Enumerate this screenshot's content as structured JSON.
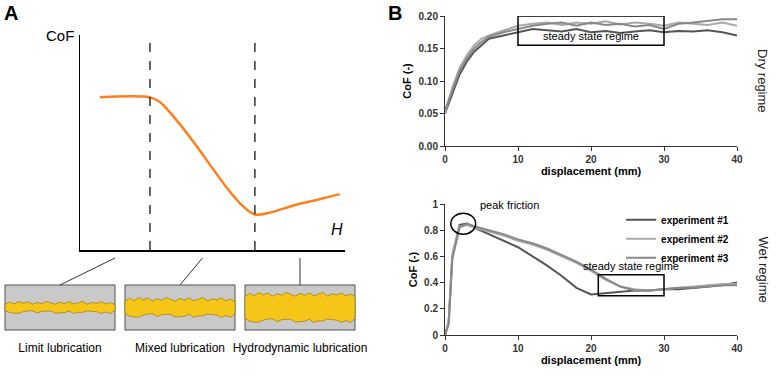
{
  "panel_labels": [
    "A",
    "B"
  ],
  "chart_data": [
    {
      "type": "line",
      "xlabel": "H",
      "ylabel": "CoF",
      "xlim": [
        0,
        10
      ],
      "ylim": [
        0,
        10
      ],
      "tick_labels": false,
      "color": "#ff7f1f",
      "x": [
        0.75,
        2.64,
        3.0,
        3.6,
        4.3,
        5.0,
        5.6,
        6.1,
        6.6,
        7.2,
        8.0,
        9.0,
        9.8
      ],
      "values": [
        7.1,
        7.1,
        6.9,
        6.1,
        5.0,
        3.8,
        2.8,
        2.1,
        1.65,
        1.75,
        2.05,
        2.35,
        2.6
      ],
      "boundaries": [
        2.64,
        6.6
      ],
      "regimes": [
        "Limit lubrication",
        "Mixed lubrication",
        "Hydrodynamic lubrication"
      ]
    },
    {
      "type": "line",
      "title": "Dry regime",
      "xlabel": "displacement (mm)",
      "ylabel": "CoF (-)",
      "xlim": [
        0,
        40
      ],
      "xticks": [
        0,
        10,
        20,
        30,
        40
      ],
      "ylim": [
        0,
        0.2
      ],
      "yticks": [
        {
          "value": 0,
          "label": "0.00"
        },
        {
          "value": 0.05,
          "label": "0.05"
        },
        {
          "value": 0.1,
          "label": "0.10"
        },
        {
          "value": 0.15,
          "label": "0.15"
        },
        {
          "value": 0.2,
          "label": "0.20"
        }
      ],
      "x": [
        0,
        1,
        2,
        3,
        4,
        5,
        6,
        8,
        10,
        12,
        14,
        16,
        18,
        20,
        22,
        24,
        26,
        28,
        30,
        32,
        34,
        36,
        38,
        40
      ],
      "series": [
        {
          "color": "#555555",
          "values": [
            0.05,
            0.08,
            0.11,
            0.13,
            0.145,
            0.155,
            0.165,
            0.17,
            0.175,
            0.18,
            0.178,
            0.176,
            0.18,
            0.175,
            0.177,
            0.174,
            0.176,
            0.178,
            0.175,
            0.177,
            0.176,
            0.178,
            0.175,
            0.17
          ]
        },
        {
          "color": "#aaaaaa",
          "values": [
            0.05,
            0.09,
            0.12,
            0.14,
            0.155,
            0.165,
            0.17,
            0.178,
            0.185,
            0.188,
            0.19,
            0.186,
            0.19,
            0.188,
            0.192,
            0.187,
            0.19,
            0.188,
            0.185,
            0.19,
            0.188,
            0.186,
            0.19,
            0.185
          ]
        },
        {
          "color": "#888888",
          "values": [
            0.055,
            0.085,
            0.115,
            0.135,
            0.15,
            0.16,
            0.168,
            0.175,
            0.18,
            0.185,
            0.188,
            0.19,
            0.185,
            0.19,
            0.186,
            0.188,
            0.184,
            0.186,
            0.18,
            0.188,
            0.19,
            0.192,
            0.195,
            0.195
          ]
        }
      ],
      "annotations": [
        {
          "text": "steady state regime",
          "shape": "rect",
          "x0": 10,
          "x1": 30,
          "y0": 0.155,
          "y1": 0.2
        }
      ]
    },
    {
      "type": "line",
      "title": "Wet regime",
      "xlabel": "displacement (mm)",
      "ylabel": "CoF (-)",
      "xlim": [
        0,
        40
      ],
      "xticks": [
        0,
        10,
        20,
        30,
        40
      ],
      "ylim": [
        0,
        1
      ],
      "yticks": [
        0,
        0.2,
        0.4,
        0.6,
        0.8,
        1
      ],
      "legend": "upper right",
      "x": [
        0,
        0.5,
        1,
        2,
        3,
        4,
        6,
        8,
        10,
        12,
        14,
        16,
        18,
        20,
        22,
        24,
        26,
        28,
        30,
        32,
        34,
        36,
        38,
        40
      ],
      "series": [
        {
          "name": "experiment #1",
          "color": "#555555",
          "values": [
            0,
            0.1,
            0.6,
            0.84,
            0.85,
            0.82,
            0.77,
            0.72,
            0.67,
            0.6,
            0.53,
            0.45,
            0.36,
            0.31,
            0.32,
            0.33,
            0.34,
            0.34,
            0.35,
            0.35,
            0.36,
            0.37,
            0.38,
            0.4
          ]
        },
        {
          "name": "experiment #2",
          "color": "#aaaaaa",
          "values": [
            0,
            0.1,
            0.62,
            0.83,
            0.84,
            0.82,
            0.79,
            0.76,
            0.72,
            0.69,
            0.65,
            0.6,
            0.55,
            0.49,
            0.42,
            0.37,
            0.35,
            0.34,
            0.35,
            0.36,
            0.37,
            0.38,
            0.39,
            0.39
          ]
        },
        {
          "name": "experiment #3",
          "color": "#888888",
          "values": [
            0,
            0.08,
            0.58,
            0.82,
            0.85,
            0.83,
            0.8,
            0.77,
            0.73,
            0.7,
            0.66,
            0.61,
            0.56,
            0.5,
            0.43,
            0.37,
            0.34,
            0.34,
            0.35,
            0.36,
            0.36,
            0.37,
            0.38,
            0.38
          ]
        }
      ],
      "annotations": [
        {
          "text": "peak friction",
          "shape": "circle",
          "x0": 0.8,
          "x1": 4.2,
          "y0": 0.77,
          "y1": 0.93
        },
        {
          "text": "steady state regime",
          "shape": "rect",
          "x0": 21,
          "x1": 30,
          "y0": 0.3,
          "y1": 0.46
        }
      ]
    }
  ]
}
